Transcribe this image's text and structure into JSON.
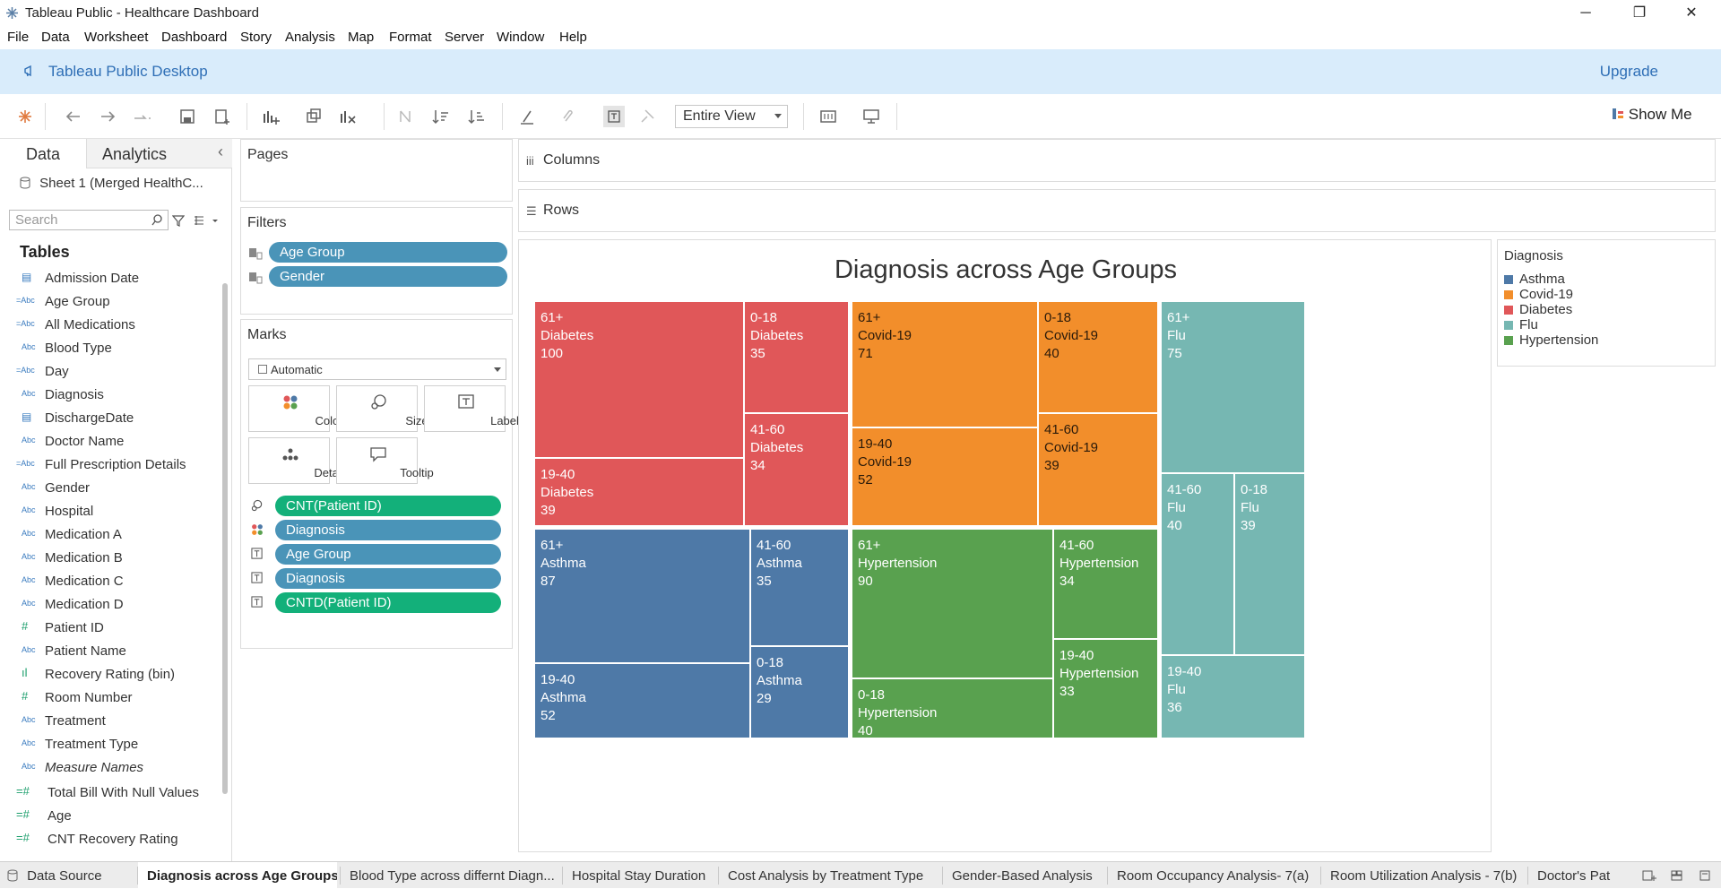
{
  "window": {
    "title": "Tableau Public - Healthcare Dashboard",
    "minimize": "─",
    "restore": "❐",
    "close": "✕"
  },
  "menu": [
    "File",
    "Data",
    "Worksheet",
    "Dashboard",
    "Story",
    "Analysis",
    "Map",
    "Format",
    "Server",
    "Window",
    "Help"
  ],
  "banner": {
    "product": "Tableau Public Desktop",
    "upgrade": "Upgrade"
  },
  "toolbar": {
    "fit": "Entire View",
    "show_me": "Show Me"
  },
  "data_pane": {
    "tabs": [
      "Data",
      "Analytics"
    ],
    "collapse": "‹",
    "source": "Sheet 1 (Merged HealthC...",
    "search_placeholder": "Search",
    "tables_heading": "Tables",
    "fields": [
      {
        "icon": "▤",
        "name": "Admission Date",
        "kind": "date"
      },
      {
        "icon": "=Abc",
        "name": "Age Group",
        "kind": "calc-string"
      },
      {
        "icon": "=Abc",
        "name": "All Medications",
        "kind": "calc-string"
      },
      {
        "icon": "Abc",
        "name": "Blood Type",
        "kind": "string"
      },
      {
        "icon": "=Abc",
        "name": "Day",
        "kind": "calc-string"
      },
      {
        "icon": "Abc",
        "name": "Diagnosis",
        "kind": "string"
      },
      {
        "icon": "▤",
        "name": "DischargeDate",
        "kind": "date"
      },
      {
        "icon": "Abc",
        "name": "Doctor Name",
        "kind": "string"
      },
      {
        "icon": "=Abc",
        "name": "Full Prescription Details",
        "kind": "calc-string"
      },
      {
        "icon": "Abc",
        "name": "Gender",
        "kind": "string"
      },
      {
        "icon": "Abc",
        "name": "Hospital",
        "kind": "string"
      },
      {
        "icon": "Abc",
        "name": "Medication A",
        "kind": "string"
      },
      {
        "icon": "Abc",
        "name": "Medication B",
        "kind": "string"
      },
      {
        "icon": "Abc",
        "name": "Medication C",
        "kind": "string"
      },
      {
        "icon": "Abc",
        "name": "Medication D",
        "kind": "string"
      },
      {
        "icon": "#",
        "name": "Patient ID",
        "kind": "number"
      },
      {
        "icon": "Abc",
        "name": "Patient Name",
        "kind": "string"
      },
      {
        "icon": "ıl",
        "name": "Recovery Rating (bin)",
        "kind": "bin"
      },
      {
        "icon": "#",
        "name": "Room Number",
        "kind": "number"
      },
      {
        "icon": "Abc",
        "name": "Treatment",
        "kind": "string"
      },
      {
        "icon": "Abc",
        "name": "Treatment Type",
        "kind": "string"
      },
      {
        "icon": "Abc",
        "name": "Measure Names",
        "kind": "string-italic"
      },
      {
        "icon": "=#",
        "name": "Total Bill With Null Values",
        "kind": "calc-number"
      },
      {
        "icon": "=#",
        "name": "Age",
        "kind": "calc-number"
      },
      {
        "icon": "=#",
        "name": "CNT Recovery Rating",
        "kind": "calc-number"
      }
    ]
  },
  "pages": {
    "title": "Pages"
  },
  "filters": {
    "title": "Filters",
    "pills": [
      "Age Group",
      "Gender"
    ]
  },
  "marks": {
    "title": "Marks",
    "type": "Automatic",
    "buttons": [
      "Color",
      "Size",
      "Label",
      "Detail",
      "Tooltip"
    ],
    "pills": [
      {
        "label": "CNT(Patient ID)",
        "color": "green",
        "icon": "size"
      },
      {
        "label": "Diagnosis",
        "color": "blue",
        "icon": "color"
      },
      {
        "label": "Age Group",
        "color": "blue",
        "icon": "label"
      },
      {
        "label": "Diagnosis",
        "color": "blue",
        "icon": "label"
      },
      {
        "label": "CNTD(Patient ID)",
        "color": "green",
        "icon": "label"
      }
    ]
  },
  "shelves": {
    "columns": "Columns",
    "rows": "Rows"
  },
  "chart_data": {
    "type": "treemap",
    "title": "Diagnosis across Age Groups",
    "measure": "Count of Patient ID",
    "series": [
      {
        "name": "Diabetes",
        "color": "#e05759",
        "values": [
          {
            "age": "61+",
            "value": 100
          },
          {
            "age": "0-18",
            "value": 35
          },
          {
            "age": "41-60",
            "value": 34
          },
          {
            "age": "19-40",
            "value": 39
          }
        ]
      },
      {
        "name": "Covid-19",
        "color": "#f28e2b",
        "values": [
          {
            "age": "61+",
            "value": 71
          },
          {
            "age": "0-18",
            "value": 40
          },
          {
            "age": "19-40",
            "value": 52
          },
          {
            "age": "41-60",
            "value": 39
          }
        ]
      },
      {
        "name": "Flu",
        "color": "#76b7b2",
        "values": [
          {
            "age": "61+",
            "value": 75
          },
          {
            "age": "41-60",
            "value": 40
          },
          {
            "age": "0-18",
            "value": 39
          },
          {
            "age": "19-40",
            "value": 36
          }
        ]
      },
      {
        "name": "Asthma",
        "color": "#4e79a7",
        "values": [
          {
            "age": "61+",
            "value": 87
          },
          {
            "age": "41-60",
            "value": 35
          },
          {
            "age": "19-40",
            "value": 52
          },
          {
            "age": "0-18",
            "value": 29
          }
        ]
      },
      {
        "name": "Hypertension",
        "color": "#59a14f",
        "values": [
          {
            "age": "61+",
            "value": 90
          },
          {
            "age": "41-60",
            "value": 34
          },
          {
            "age": "19-40",
            "value": 33
          },
          {
            "age": "0-18",
            "value": 40
          }
        ]
      }
    ],
    "legend_title": "Diagnosis",
    "legend": [
      "Asthma",
      "Covid-19",
      "Diabetes",
      "Flu",
      "Hypertension"
    ]
  },
  "sheet_tabs": {
    "data_source": "Data Source",
    "tabs": [
      "Diagnosis across Age Groups",
      "Blood Type across differnt Diagn...",
      "Hospital Stay Duration",
      "Cost Analysis by Treatment Type",
      "Gender-Based Analysis",
      "Room Occupancy Analysis- 7(a)",
      "Room Utilization Analysis - 7(b)",
      "Doctor's Pat"
    ],
    "active": 0
  }
}
